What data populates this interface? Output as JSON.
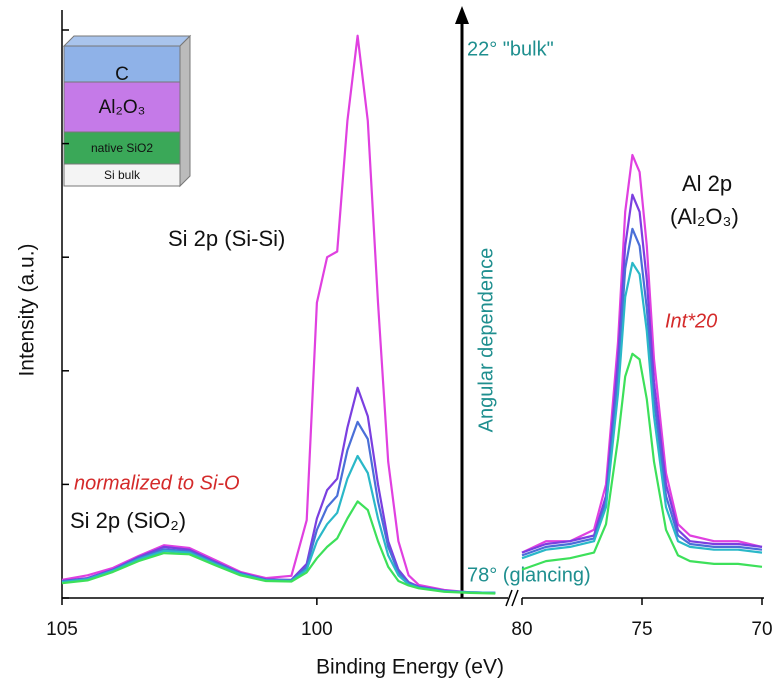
{
  "chart_data": [
    {
      "type": "line",
      "ylabel": "Intensity (a.u.)",
      "xlabel": "Binding Energy (eV)",
      "xlim": [
        105,
        96.25
      ],
      "xticks": [
        105,
        100
      ],
      "ylim": [
        0,
        100
      ],
      "yticks": [
        0,
        20,
        40,
        60,
        80,
        100
      ],
      "x": [
        105,
        104.5,
        104,
        103.5,
        103,
        102.5,
        102,
        101.5,
        101,
        100.5,
        100.2,
        100,
        99.8,
        99.6,
        99.4,
        99.2,
        99,
        98.8,
        98.6,
        98.4,
        98.2,
        98,
        97.5,
        97,
        96.5
      ],
      "series": [
        {
          "color": "#e040e0",
          "values": [
            3.2,
            4,
            5.3,
            7.4,
            9.3,
            8.8,
            6.7,
            4.6,
            3.5,
            3.9,
            13.7,
            52,
            60,
            61,
            84,
            99,
            84,
            52,
            24,
            10,
            4,
            2.3,
            1.4,
            1,
            0.9
          ]
        },
        {
          "color": "#7b3fe0",
          "values": [
            3,
            3.5,
            5,
            7.2,
            9,
            8.5,
            6.4,
            4.4,
            3.3,
            3.2,
            6,
            14,
            19,
            21,
            30,
            37,
            32,
            20,
            10,
            5,
            2.8,
            2,
            1.3,
            1,
            0.9
          ]
        },
        {
          "color": "#4a6fd8",
          "values": [
            2.9,
            3.4,
            4.9,
            7,
            8.6,
            8.2,
            6.2,
            4.3,
            3.2,
            3.1,
            5.5,
            12,
            16,
            18,
            26,
            31,
            28,
            17,
            9,
            4.5,
            2.6,
            1.9,
            1.2,
            1,
            0.9
          ]
        },
        {
          "color": "#2ab8c8",
          "values": [
            2.8,
            3.3,
            4.8,
            6.8,
            8.3,
            8,
            6,
            4.2,
            3.1,
            3,
            5,
            10,
            13,
            15,
            21,
            25,
            22,
            14,
            7.5,
            4,
            2.4,
            1.8,
            1.2,
            1,
            0.9
          ]
        },
        {
          "color": "#3de05a",
          "values": [
            2.6,
            3.1,
            4.6,
            6.5,
            7.9,
            7.7,
            5.8,
            4,
            3,
            2.9,
            4.5,
            7,
            9,
            10.5,
            14,
            17,
            15.5,
            10,
            5.5,
            3,
            2.2,
            1.7,
            1.1,
            0.9,
            0.8
          ]
        }
      ],
      "annotations": [
        {
          "text": "Si 2p (Si-Si)",
          "color": "#111"
        },
        {
          "text": "Si 2p (SiO₂)",
          "color": "#111"
        },
        {
          "text": "normalized to Si-O",
          "color": "#d42a2a"
        },
        {
          "text": "22° \"bulk\"",
          "color": "#1f8f8f"
        },
        {
          "text": "78° (glancing)",
          "color": "#1f8f8f"
        },
        {
          "text": "Angular dependence",
          "color": "#1f8f8f"
        }
      ],
      "inset": [
        "C",
        "Al₂O₃",
        "native SiO2",
        "Si bulk"
      ]
    },
    {
      "type": "line",
      "xlim": [
        80,
        70
      ],
      "xticks": [
        80,
        75,
        70
      ],
      "ylim": [
        0,
        100
      ],
      "x": [
        80,
        79,
        78,
        77,
        76.5,
        76,
        75.7,
        75.4,
        75.1,
        74.8,
        74.5,
        74,
        73.5,
        73,
        72,
        71,
        70
      ],
      "series": [
        {
          "color": "#e040e0",
          "values": [
            8,
            10,
            10,
            12,
            20,
            45,
            68,
            78,
            75,
            62,
            42,
            22,
            13,
            11,
            10,
            10,
            9
          ]
        },
        {
          "color": "#7b3fe0",
          "values": [
            8,
            9.5,
            10,
            11,
            18,
            42,
            62,
            71,
            68,
            56,
            38,
            20,
            12,
            10,
            9.5,
            9.5,
            9
          ]
        },
        {
          "color": "#4a6fd8",
          "values": [
            7.5,
            9,
            9.5,
            10.5,
            17,
            39,
            58,
            65,
            62,
            51,
            35,
            18,
            11,
            9.5,
            9,
            9,
            8.5
          ]
        },
        {
          "color": "#2ab8c8",
          "values": [
            7,
            8.5,
            9,
            10,
            16,
            36,
            53,
            59,
            57,
            47,
            32,
            16,
            10,
            9,
            8.5,
            8.5,
            8
          ]
        },
        {
          "color": "#3de05a",
          "values": [
            5,
            6.5,
            7,
            8,
            13,
            28,
            39,
            43,
            42,
            35,
            24,
            12,
            7.5,
            6.5,
            6,
            6,
            5.5
          ]
        }
      ],
      "annotations": [
        {
          "text": "Al 2p",
          "color": "#111"
        },
        {
          "text": "(Al₂O₃)",
          "color": "#111"
        },
        {
          "text": "Int*20",
          "color": "#d42a2a"
        }
      ]
    }
  ]
}
